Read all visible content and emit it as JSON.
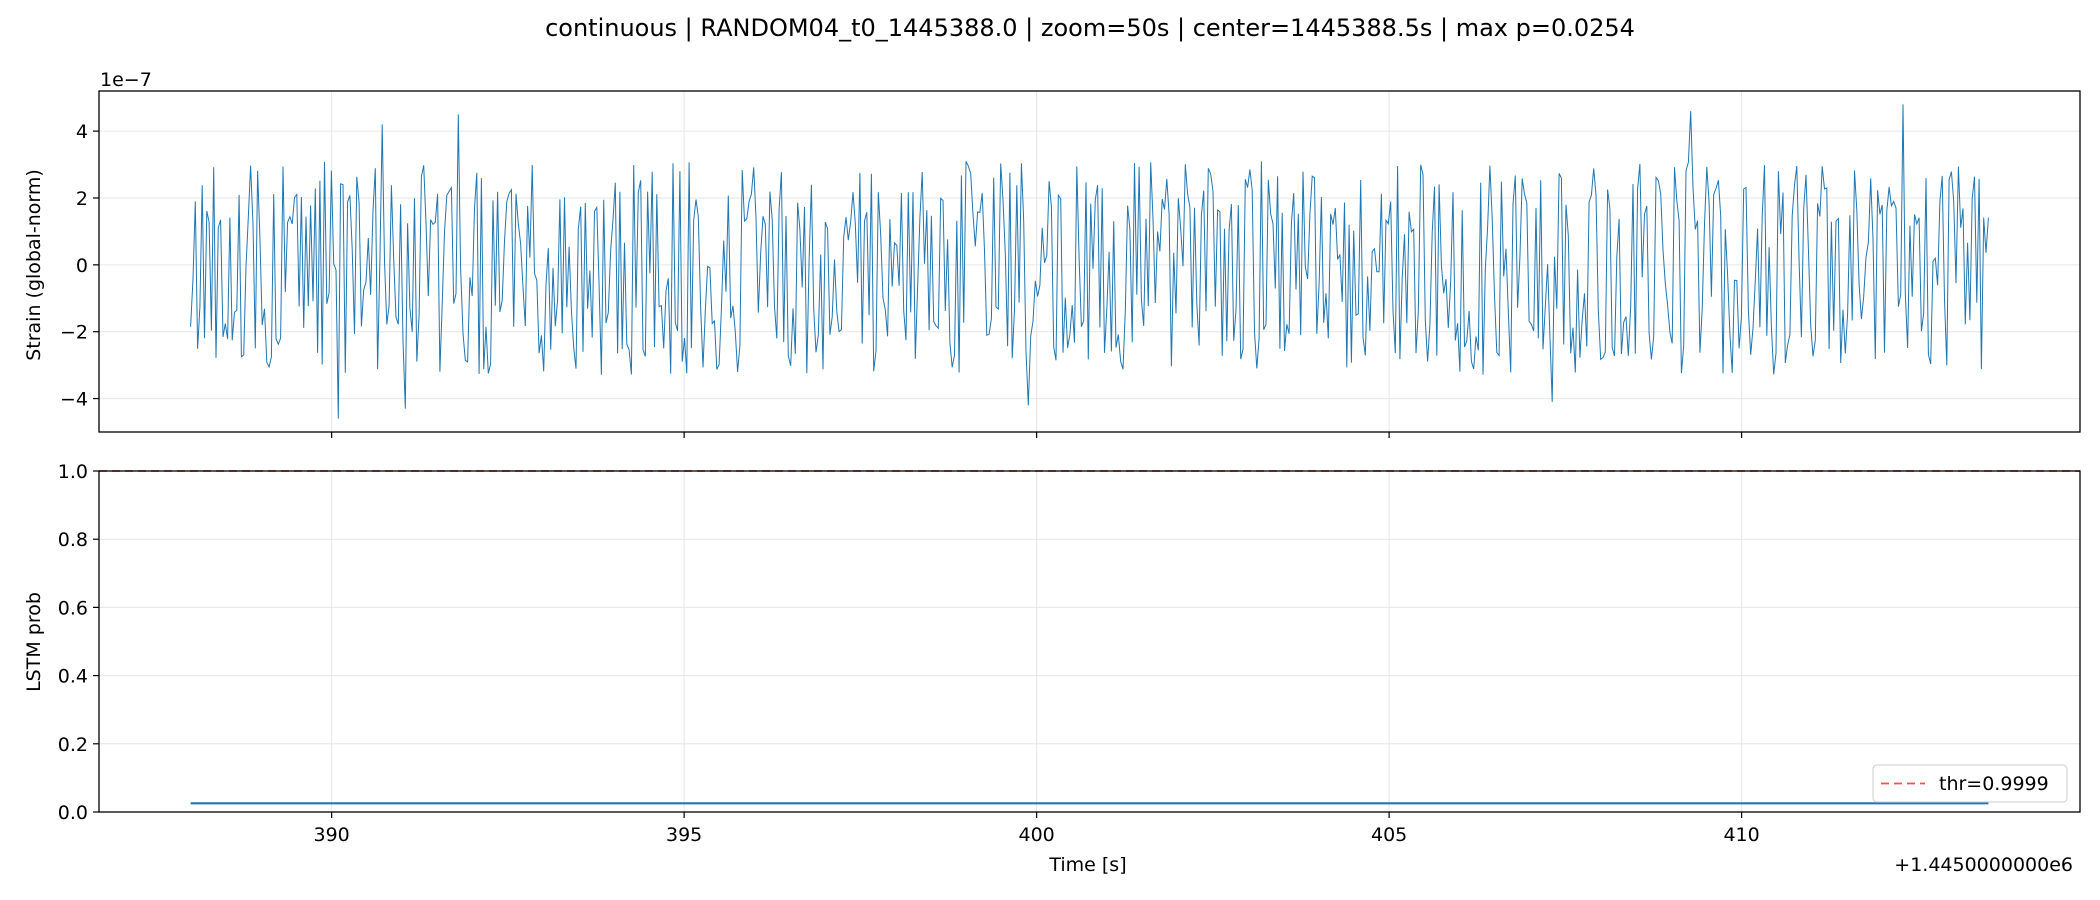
{
  "figure": {
    "title": "continuous | RANDOM04_t0_1445388.0 | zoom=50s | center=1445388.5s | max p=0.0254"
  },
  "chart_data": [
    {
      "type": "line",
      "panel": "top",
      "ylabel": "Strain (global-norm)",
      "y_scale_text": "1e−7",
      "x_offset_text": "+1.4450000000e6",
      "xlim": [
        1445386.7,
        1445414.8
      ],
      "ylim": [
        -5.0,
        5.2
      ],
      "x_ticks": [
        1445390,
        1445395,
        1445400,
        1445405,
        1445410
      ],
      "y_ticks": [
        -4,
        -2,
        0,
        2,
        4
      ],
      "y_tick_labels": [
        "−4",
        "−2",
        "0",
        "2",
        "4"
      ],
      "grid": true,
      "series": [
        {
          "color": "#1f77b4",
          "x_start": 1445388.0,
          "x_end": 1445413.5,
          "n_points": 780,
          "envelope_max": 4.8,
          "envelope_min": -4.6,
          "note_values": "dense oscillating strain signal, amplitude mostly within ±4e-7"
        }
      ]
    },
    {
      "type": "line",
      "panel": "bottom",
      "ylabel": "LSTM prob",
      "xlabel": "Time [s]",
      "x_offset_text": "+1.4450000000e6",
      "xlim": [
        1445386.7,
        1445414.8
      ],
      "ylim": [
        0.0,
        1.0
      ],
      "x_ticks": [
        1445390,
        1445395,
        1445400,
        1445405,
        1445410
      ],
      "x_tick_labels": [
        "390",
        "395",
        "400",
        "405",
        "410"
      ],
      "y_ticks": [
        0.0,
        0.2,
        0.4,
        0.6,
        0.8,
        1.0
      ],
      "y_tick_labels": [
        "0.0",
        "0.2",
        "0.4",
        "0.6",
        "0.8",
        "1.0"
      ],
      "grid": true,
      "series": [
        {
          "color": "#1f77b4",
          "x": [
            1445388.0,
            1445413.5
          ],
          "y": [
            0.0254,
            0.0254
          ]
        }
      ],
      "threshold": {
        "name": "thr=0.9999",
        "value": 0.9999,
        "color": "#ff4d4d",
        "style": "dashed"
      },
      "legend_placement": "lower-right"
    }
  ]
}
